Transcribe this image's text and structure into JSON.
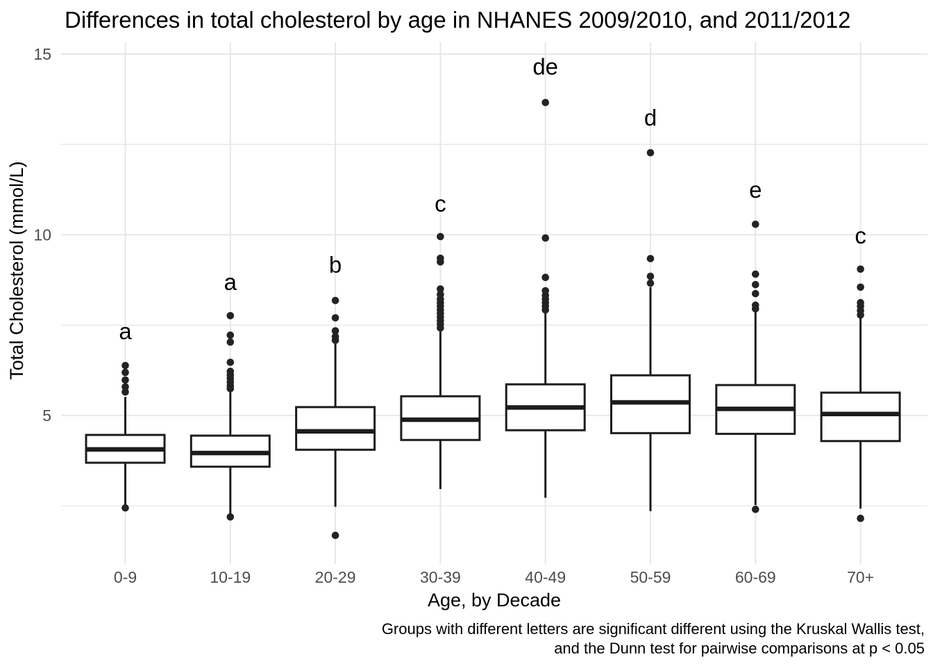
{
  "chart_data": {
    "type": "boxplot",
    "title": "Differences in total cholesterol by age in NHANES 2009/2010, and 2011/2012",
    "xlabel": "Age, by Decade",
    "ylabel": "Total Cholesterol (mmol/L)",
    "caption_line1": "Groups with different letters are significant different using the Kruskal Wallis test,",
    "caption_line2": "and the Dunn test for pairwise comparisons at p < 0.05",
    "y_axis": {
      "major_ticks": [
        5,
        10,
        15
      ],
      "minor_gridlines": [
        2.5,
        7.5,
        12.5
      ],
      "ylim": [
        0.9,
        15.3
      ],
      "grid": "on",
      "unit": "mmol/L"
    },
    "legend": "none",
    "categories": [
      "0-9",
      "10-19",
      "20-29",
      "30-39",
      "40-49",
      "50-59",
      "60-69",
      "70+"
    ],
    "groups": [
      {
        "category": "0-9",
        "letter": "a",
        "letter_value": 7.32,
        "whisker_low": 2.52,
        "q1": 3.69,
        "median": 4.06,
        "q3": 4.46,
        "whisker_high": 5.51,
        "outliers": [
          2.44,
          5.65,
          5.79,
          5.98,
          6.19,
          6.38
        ]
      },
      {
        "category": "10-19",
        "letter": "a",
        "letter_value": 8.68,
        "whisker_low": 2.27,
        "q1": 3.58,
        "median": 3.96,
        "q3": 4.44,
        "whisker_high": 5.66,
        "outliers": [
          2.19,
          5.74,
          5.82,
          5.92,
          6.02,
          6.12,
          6.22,
          6.47,
          7.03,
          7.22,
          7.76
        ]
      },
      {
        "category": "20-29",
        "letter": "b",
        "letter_value": 9.16,
        "whisker_low": 2.47,
        "q1": 4.05,
        "median": 4.56,
        "q3": 5.23,
        "whisker_high": 6.98,
        "outliers": [
          1.68,
          7.08,
          7.18,
          7.34,
          7.7,
          8.18
        ]
      },
      {
        "category": "30-39",
        "letter": "c",
        "letter_value": 10.85,
        "whisker_low": 2.96,
        "q1": 4.32,
        "median": 4.88,
        "q3": 5.53,
        "whisker_high": 7.32,
        "outliers": [
          7.42,
          7.52,
          7.62,
          7.72,
          7.82,
          7.92,
          8.02,
          8.12,
          8.22,
          8.35,
          8.5,
          9.25,
          9.35,
          9.95
        ]
      },
      {
        "category": "40-49",
        "letter": "de",
        "letter_value": 14.64,
        "whisker_low": 2.72,
        "q1": 4.59,
        "median": 5.22,
        "q3": 5.86,
        "whisker_high": 7.86,
        "outliers": [
          7.92,
          8.02,
          8.12,
          8.22,
          8.32,
          8.45,
          8.82,
          9.91,
          13.66
        ]
      },
      {
        "category": "50-59",
        "letter": "d",
        "letter_value": 13.23,
        "whisker_low": 2.35,
        "q1": 4.51,
        "median": 5.36,
        "q3": 6.11,
        "whisker_high": 8.55,
        "outliers": [
          8.66,
          8.85,
          9.34,
          12.27
        ]
      },
      {
        "category": "60-69",
        "letter": "e",
        "letter_value": 11.24,
        "whisker_low": 2.52,
        "q1": 4.49,
        "median": 5.18,
        "q3": 5.84,
        "whisker_high": 7.88,
        "outliers": [
          2.4,
          7.95,
          8.05,
          8.37,
          8.62,
          8.91,
          10.29
        ]
      },
      {
        "category": "70+",
        "letter": "c",
        "letter_value": 9.97,
        "whisker_low": 2.42,
        "q1": 4.29,
        "median": 5.04,
        "q3": 5.63,
        "whisker_high": 7.72,
        "outliers": [
          2.15,
          7.78,
          7.9,
          8.02,
          8.12,
          8.55,
          9.05
        ]
      }
    ]
  },
  "colors": {
    "background": "#ffffff",
    "gridline": "#e6e6e6",
    "box_stroke": "#1c1c1c",
    "box_fill": "#ffffff",
    "median": "#1c1c1c",
    "outlier_dot": "#232323",
    "tick_label": "#4d4d4d",
    "text": "#000000"
  }
}
